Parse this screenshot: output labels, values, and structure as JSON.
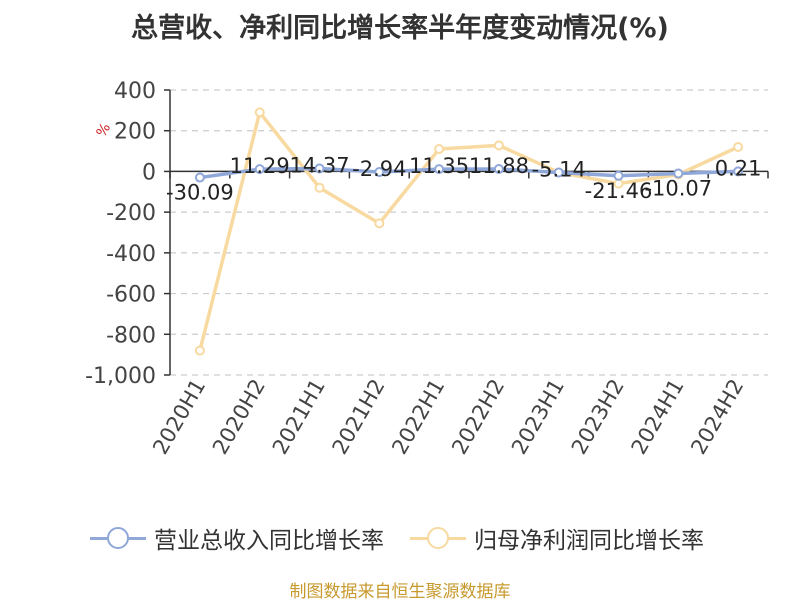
{
  "chart_data": {
    "type": "line",
    "title": "总营收、净利同比增长率半年度变动情况(%)",
    "ylabel": "%",
    "categories": [
      "2020H1",
      "2020H2",
      "2021H1",
      "2021H2",
      "2022H1",
      "2022H2",
      "2023H1",
      "2023H2",
      "2024H1",
      "2024H2"
    ],
    "ylim": [
      -1000,
      400
    ],
    "yticks": [
      400,
      200,
      0,
      -200,
      -400,
      -600,
      -800,
      -1000
    ],
    "ytick_labels": [
      "400",
      "200",
      "0",
      "-200",
      "-400",
      "-600",
      "-800",
      "-1,000"
    ],
    "grid": true,
    "legend_position": "bottom",
    "series": [
      {
        "name": "营业总收入同比增长率",
        "color": "#8fa8d9",
        "values": [
          -30.09,
          11.29,
          14.37,
          -2.94,
          11.35,
          11.88,
          -5.14,
          -21.46,
          -10.07,
          0.21
        ],
        "labels": [
          "-30.09",
          "11.29",
          "14.37",
          "-2.94",
          "11.35",
          "11.88",
          "-5.14",
          "-21.46",
          "-10.07",
          "0.21"
        ]
      },
      {
        "name": "归母净利润同比增长率",
        "color": "#f8d9a0",
        "values": [
          -880,
          290,
          -80,
          -255,
          110,
          128,
          -5,
          -60,
          -15,
          120
        ]
      }
    ]
  },
  "footer": {
    "source": "制图数据来自恒生聚源数据库"
  }
}
